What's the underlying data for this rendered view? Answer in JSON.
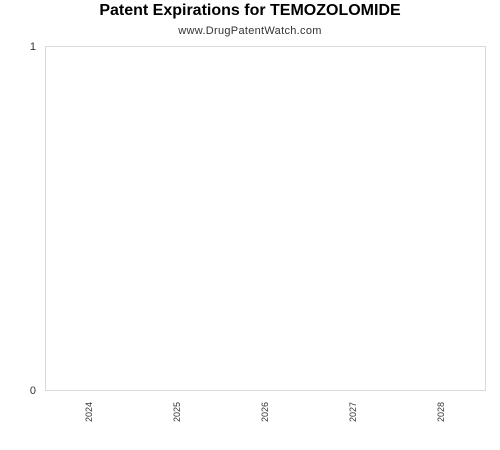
{
  "chart_data": {
    "type": "bar",
    "title": "Patent Expirations for TEMOZOLOMIDE",
    "subtitle": "www.DrugPatentWatch.com",
    "categories": [
      "2024",
      "2025",
      "2026",
      "2027",
      "2028"
    ],
    "values": [
      0,
      0,
      0,
      0,
      0
    ],
    "ylim": [
      0,
      1
    ],
    "y_ticks": [
      "0",
      "1"
    ],
    "xlabel": "",
    "ylabel": "",
    "grid": false,
    "legend": "none",
    "colors": {
      "plot_border": "#d9d9d9",
      "bar": "#4a7ebb",
      "text": "#333333"
    }
  }
}
